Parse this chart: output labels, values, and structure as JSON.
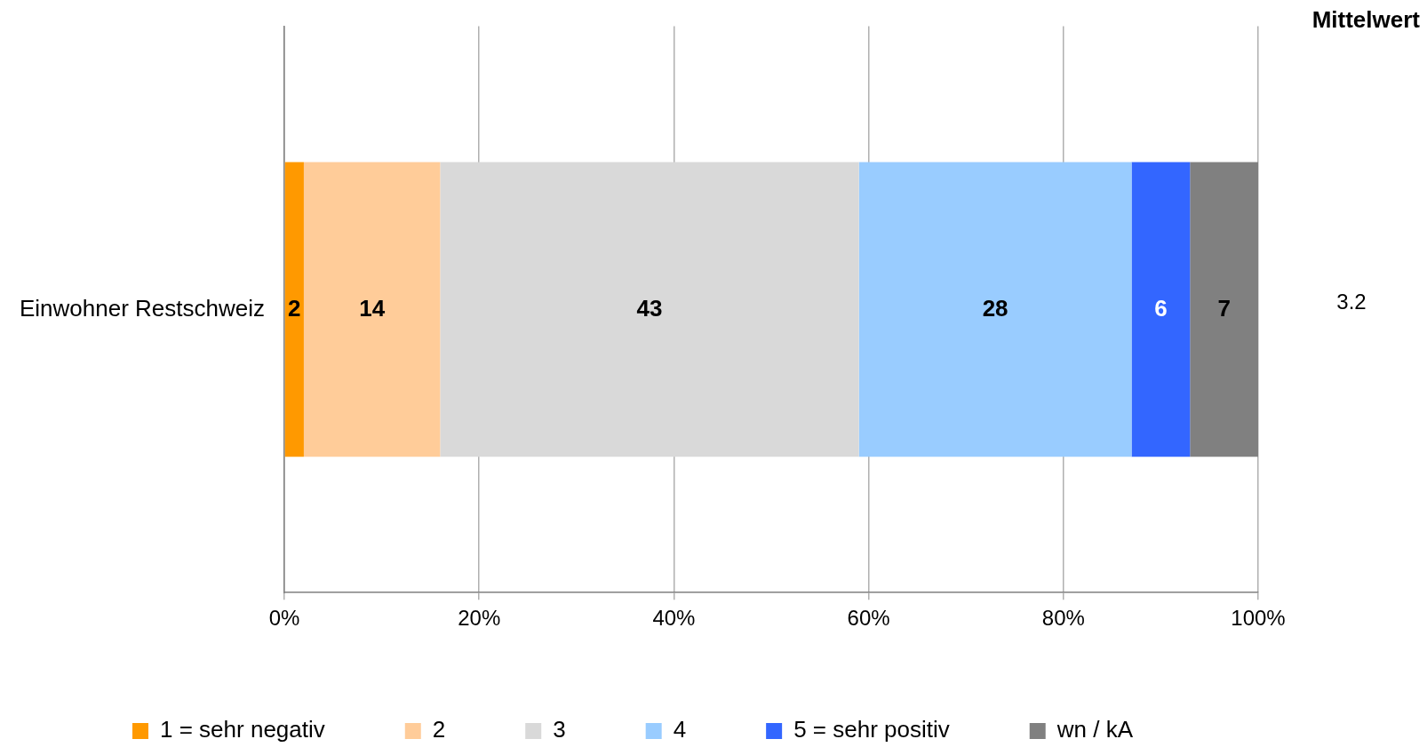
{
  "chart_data": {
    "type": "bar",
    "orientation": "horizontal",
    "stacked": true,
    "categories": [
      "Einwohner Restschweiz"
    ],
    "series": [
      {
        "name": "1 = sehr negativ",
        "color": "#ff9900",
        "values": [
          2
        ]
      },
      {
        "name": "2",
        "color": "#ffcc99",
        "values": [
          14
        ]
      },
      {
        "name": "3",
        "color": "#d9d9d9",
        "values": [
          43
        ]
      },
      {
        "name": "4",
        "color": "#99ccff",
        "values": [
          28
        ]
      },
      {
        "name": "5 = sehr positiv",
        "color": "#3366ff",
        "values": [
          6
        ]
      },
      {
        "name": "wn / kA",
        "color": "#808080",
        "values": [
          7
        ]
      }
    ],
    "xlim": [
      0,
      100
    ],
    "xticks": [
      {
        "value": 0,
        "label": "0%"
      },
      {
        "value": 20,
        "label": "20%"
      },
      {
        "value": 40,
        "label": "40%"
      },
      {
        "value": 60,
        "label": "60%"
      },
      {
        "value": 80,
        "label": "80%"
      },
      {
        "value": 100,
        "label": "100%"
      }
    ],
    "grid": "x",
    "legend": "bottom",
    "data_labels": true,
    "annotations": [
      "Mittelwert",
      "3.2"
    ]
  }
}
